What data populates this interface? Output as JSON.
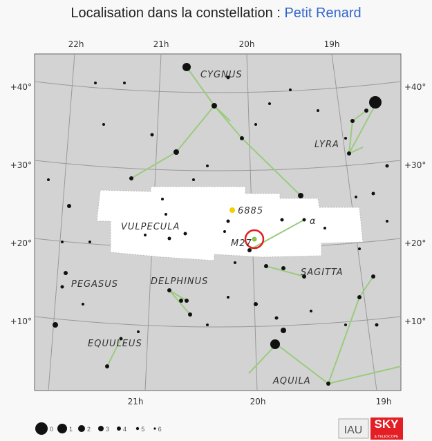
{
  "title": {
    "prefix": "Localisation dans la constellation : ",
    "link": "Petit Renard"
  },
  "ra_top": [
    "22h",
    "21h",
    "20h",
    "19h"
  ],
  "ra_bottom": [
    "21h",
    "20h",
    "19h"
  ],
  "dec_left": [
    "+40°",
    "+30°",
    "+20°",
    "+10°"
  ],
  "dec_right": [
    "+40°",
    "+30°",
    "+20°",
    "+10°"
  ],
  "constellations": [
    "CYGNUS",
    "LYRA",
    "VULPECULA",
    "SAGITTA",
    "PEGASUS",
    "DELPHINUS",
    "EQUULEUS",
    "AQUILA"
  ],
  "objects": {
    "ngc": "6885",
    "messier": "M27",
    "alpha": "α"
  },
  "legend": {
    "magnitudes": [
      "0",
      "1",
      "2",
      "3",
      "4",
      "5",
      "6"
    ]
  },
  "logo": {
    "left": "IAU",
    "right": "SKY",
    "sub": "& TELESCOPE"
  },
  "colors": {
    "link": "#3366cc",
    "highlight": "#ffffff",
    "sky": "#d3d3d3",
    "lines": "#9acb7e",
    "marker": "#e02020"
  }
}
